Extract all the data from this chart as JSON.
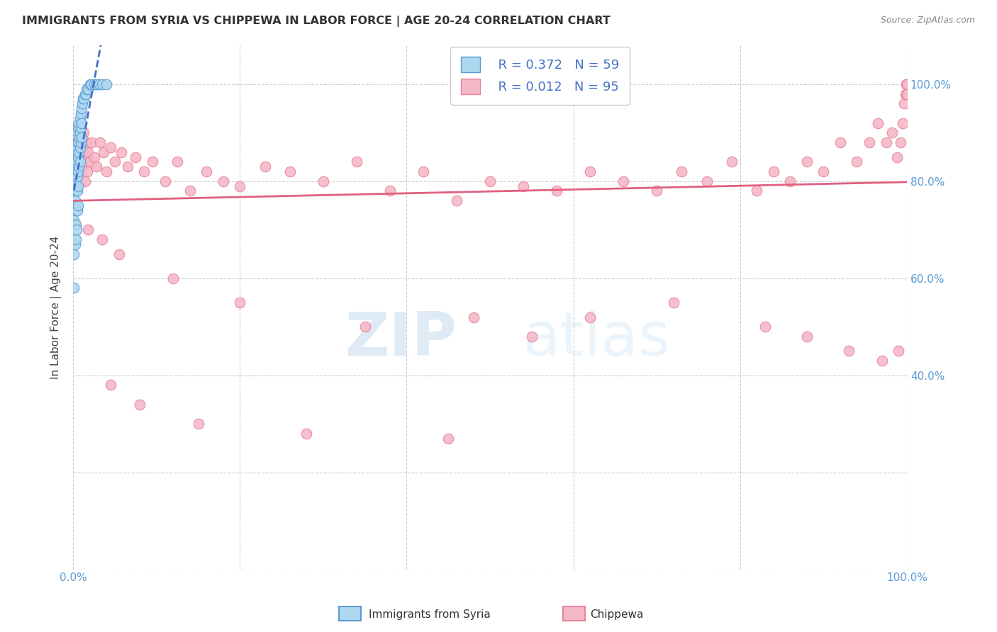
{
  "title": "IMMIGRANTS FROM SYRIA VS CHIPPEWA IN LABOR FORCE | AGE 20-24 CORRELATION CHART",
  "source": "Source: ZipAtlas.com",
  "ylabel": "In Labor Force | Age 20-24",
  "watermark_zip": "ZIP",
  "watermark_atlas": "atlas",
  "legend_r_syria": "R = 0.372",
  "legend_n_syria": "N = 59",
  "legend_r_chippewa": "R = 0.012",
  "legend_n_chippewa": "N = 95",
  "syria_color": "#add8f0",
  "syria_edge_color": "#5b9bd5",
  "chippewa_color": "#f4b8c8",
  "chippewa_edge_color": "#e8849a",
  "trend_syria_color": "#4472c4",
  "trend_chippewa_color": "#e06080",
  "grid_color": "#cccccc",
  "background_color": "#ffffff",
  "title_color": "#333333",
  "tick_color": "#5b9bd5",
  "xlim": [
    0.0,
    1.0
  ],
  "ylim": [
    0.0,
    1.08
  ],
  "yticks": [
    0.0,
    0.2,
    0.4,
    0.6,
    0.8,
    1.0
  ],
  "ytick_labels": [
    "",
    "",
    "40.0%",
    "60.0%",
    "80.0%",
    "100.0%"
  ],
  "xtick_labels": [
    "0.0%",
    "",
    "",
    "",
    "",
    "100.0%"
  ],
  "syria_x": [
    0.001,
    0.001,
    0.001,
    0.002,
    0.002,
    0.002,
    0.002,
    0.003,
    0.003,
    0.003,
    0.003,
    0.003,
    0.003,
    0.004,
    0.004,
    0.004,
    0.004,
    0.004,
    0.004,
    0.005,
    0.005,
    0.005,
    0.005,
    0.005,
    0.005,
    0.006,
    0.006,
    0.006,
    0.006,
    0.006,
    0.006,
    0.007,
    0.007,
    0.007,
    0.007,
    0.008,
    0.008,
    0.008,
    0.008,
    0.009,
    0.009,
    0.009,
    0.01,
    0.01,
    0.01,
    0.011,
    0.012,
    0.013,
    0.014,
    0.015,
    0.016,
    0.018,
    0.02,
    0.022,
    0.025,
    0.028,
    0.031,
    0.035,
    0.04
  ],
  "syria_y": [
    0.72,
    0.65,
    0.58,
    0.8,
    0.76,
    0.71,
    0.67,
    0.85,
    0.82,
    0.78,
    0.75,
    0.71,
    0.68,
    0.88,
    0.84,
    0.81,
    0.78,
    0.74,
    0.7,
    0.9,
    0.87,
    0.84,
    0.81,
    0.78,
    0.74,
    0.91,
    0.88,
    0.85,
    0.82,
    0.79,
    0.75,
    0.92,
    0.89,
    0.86,
    0.83,
    0.93,
    0.9,
    0.87,
    0.84,
    0.94,
    0.91,
    0.88,
    0.95,
    0.92,
    0.89,
    0.96,
    0.97,
    0.97,
    0.98,
    0.98,
    0.99,
    0.99,
    1.0,
    1.0,
    1.0,
    1.0,
    1.0,
    1.0,
    1.0
  ],
  "chippewa_x": [
    0.002,
    0.004,
    0.005,
    0.006,
    0.007,
    0.008,
    0.009,
    0.01,
    0.011,
    0.012,
    0.013,
    0.014,
    0.015,
    0.016,
    0.017,
    0.018,
    0.02,
    0.022,
    0.025,
    0.028,
    0.032,
    0.036,
    0.04,
    0.045,
    0.05,
    0.058,
    0.065,
    0.075,
    0.085,
    0.095,
    0.11,
    0.125,
    0.14,
    0.16,
    0.18,
    0.2,
    0.23,
    0.26,
    0.3,
    0.34,
    0.38,
    0.42,
    0.46,
    0.5,
    0.54,
    0.58,
    0.62,
    0.66,
    0.7,
    0.73,
    0.76,
    0.79,
    0.82,
    0.84,
    0.86,
    0.88,
    0.9,
    0.92,
    0.94,
    0.955,
    0.965,
    0.975,
    0.982,
    0.988,
    0.992,
    0.995,
    0.997,
    0.998,
    0.999,
    1.0,
    1.0,
    1.0,
    1.0,
    1.0,
    1.0,
    0.018,
    0.035,
    0.055,
    0.12,
    0.2,
    0.35,
    0.48,
    0.55,
    0.62,
    0.72,
    0.83,
    0.88,
    0.93,
    0.97,
    0.99,
    0.045,
    0.08,
    0.15,
    0.28,
    0.45
  ],
  "chippewa_y": [
    0.88,
    0.91,
    0.85,
    0.82,
    0.88,
    0.84,
    0.8,
    0.87,
    0.83,
    0.86,
    0.9,
    0.8,
    0.85,
    0.88,
    0.82,
    0.86,
    0.84,
    0.88,
    0.85,
    0.83,
    0.88,
    0.86,
    0.82,
    0.87,
    0.84,
    0.86,
    0.83,
    0.85,
    0.82,
    0.84,
    0.8,
    0.84,
    0.78,
    0.82,
    0.8,
    0.79,
    0.83,
    0.82,
    0.8,
    0.84,
    0.78,
    0.82,
    0.76,
    0.8,
    0.79,
    0.78,
    0.82,
    0.8,
    0.78,
    0.82,
    0.8,
    0.84,
    0.78,
    0.82,
    0.8,
    0.84,
    0.82,
    0.88,
    0.84,
    0.88,
    0.92,
    0.88,
    0.9,
    0.85,
    0.88,
    0.92,
    0.96,
    0.98,
    1.0,
    0.98,
    1.0,
    1.0,
    0.98,
    1.0,
    0.98,
    0.7,
    0.68,
    0.65,
    0.6,
    0.55,
    0.5,
    0.52,
    0.48,
    0.52,
    0.55,
    0.5,
    0.48,
    0.45,
    0.43,
    0.45,
    0.38,
    0.34,
    0.3,
    0.28,
    0.27
  ]
}
